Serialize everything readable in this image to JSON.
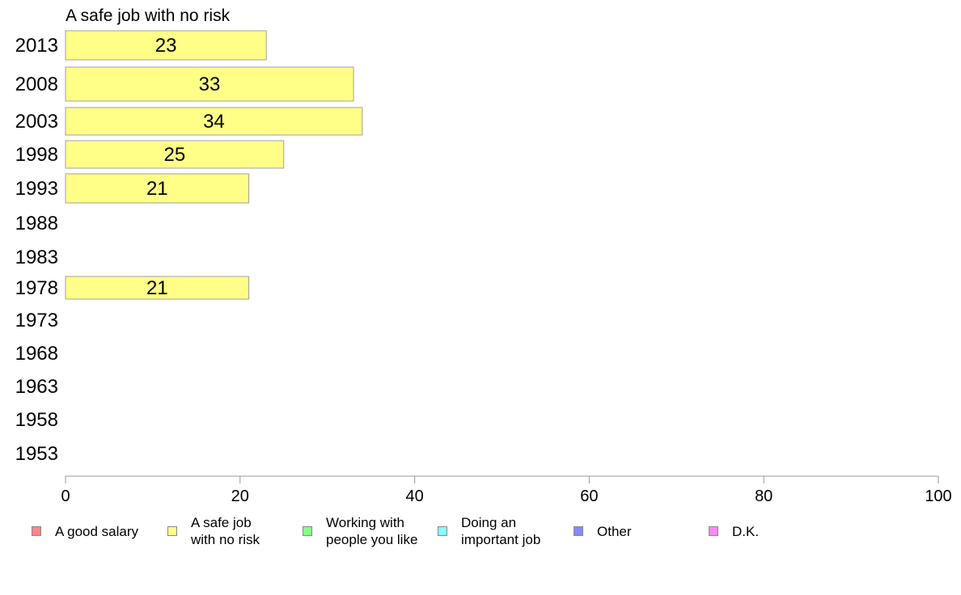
{
  "chart_data": {
    "type": "bar",
    "orientation": "horizontal",
    "title": "A safe job with no risk",
    "categories": [
      "2013",
      "2008",
      "2003",
      "1998",
      "1993",
      "1988",
      "1983",
      "1978",
      "1973",
      "1968",
      "1963",
      "1958",
      "1953"
    ],
    "series": [
      {
        "name": "A safe job with no risk",
        "values": [
          23,
          33,
          34,
          25,
          21,
          null,
          null,
          21,
          null,
          null,
          null,
          null,
          null
        ]
      }
    ],
    "xlim": [
      0,
      100
    ],
    "xticks": [
      "0",
      "20",
      "40",
      "60",
      "80",
      "100"
    ],
    "bar_color": "#ffff88",
    "bar_border_color": "#a0a0a0",
    "legend": {
      "position": "bottom",
      "items": [
        {
          "label": "A good salary",
          "color": "#ff8888"
        },
        {
          "label": "A safe job\nwith no risk",
          "color": "#ffff88"
        },
        {
          "label": "Working with\npeople you like",
          "color": "#88ff88"
        },
        {
          "label": "Doing an\nimportant job",
          "color": "#88ffff"
        },
        {
          "label": "Other",
          "color": "#8888ff"
        },
        {
          "label": "D.K.",
          "color": "#ff88ff"
        }
      ]
    }
  }
}
